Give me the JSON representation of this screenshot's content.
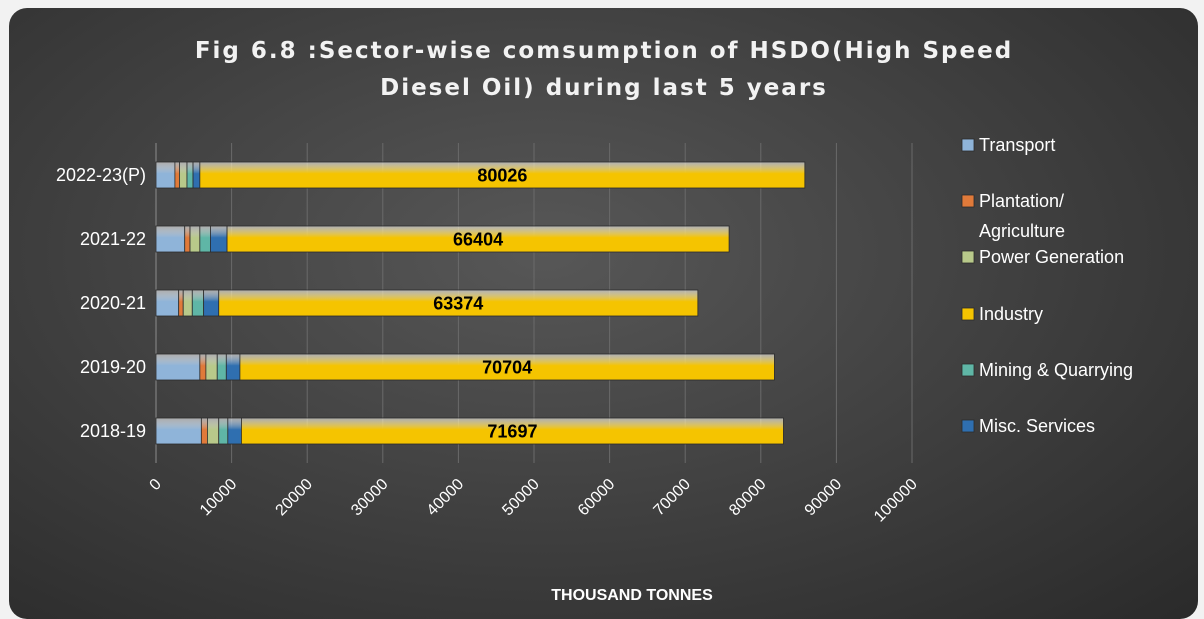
{
  "chart_data": {
    "type": "bar",
    "orientation": "horizontal",
    "stacked": true,
    "title": "Fig 6.8 :Sector-wise comsumption of HSDO(High Speed Diesel Oil) during last 5 years",
    "title_lines": [
      "Fig 6.8 :Sector-wise comsumption of HSDO(High Speed",
      "Diesel Oil) during last 5 years"
    ],
    "xlabel": "THOUSAND TONNES",
    "ylabel": "",
    "xlim": [
      0,
      100000
    ],
    "x_ticks": [
      "0",
      "10000",
      "20000",
      "30000",
      "40000",
      "50000",
      "60000",
      "70000",
      "80000",
      "90000",
      "100000"
    ],
    "categories": [
      "2018-19",
      "2019-20",
      "2020-21",
      "2021-22",
      "2022-23(P)"
    ],
    "series": [
      {
        "name": "Transport",
        "color": "#8fb4d9",
        "values": [
          6000,
          5800,
          3000,
          3800,
          2500
        ]
      },
      {
        "name": "Plantation/ Agriculture",
        "color": "#e07a3a",
        "values": [
          800,
          800,
          600,
          700,
          600
        ]
      },
      {
        "name": "Power Generation",
        "color": "#b8c98a",
        "values": [
          1500,
          1500,
          1200,
          1300,
          1000
        ]
      },
      {
        "name": "Industry",
        "color": "#f5c400",
        "values": [
          71697,
          70704,
          63374,
          66404,
          80026
        ]
      },
      {
        "name": "Mining & Quarrying",
        "color": "#5fb6a6",
        "values": [
          1200,
          1200,
          1500,
          1400,
          800
        ]
      },
      {
        "name": "Misc. Services",
        "color": "#2f6fb0",
        "values": [
          1800,
          1800,
          2000,
          2200,
          900
        ]
      }
    ],
    "series_order_in_bar": [
      "Transport",
      "Plantation/ Agriculture",
      "Power Generation",
      "Mining & Quarrying",
      "Misc. Services",
      "Industry"
    ],
    "data_labels_series": "Industry",
    "legend": {
      "position": "right",
      "entries": [
        {
          "lines": [
            "Transport"
          ],
          "color": "#8fb4d9"
        },
        {
          "lines": [
            "Plantation/",
            "Agriculture"
          ],
          "color": "#e07a3a"
        },
        {
          "lines": [
            "Power Generation"
          ],
          "color": "#b8c98a"
        },
        {
          "lines": [
            "Industry"
          ],
          "color": "#f5c400"
        },
        {
          "lines": [
            "Mining & Quarrying"
          ],
          "color": "#5fb6a6"
        },
        {
          "lines": [
            "Misc. Services"
          ],
          "color": "#2f6fb0"
        }
      ]
    },
    "grid": true
  }
}
